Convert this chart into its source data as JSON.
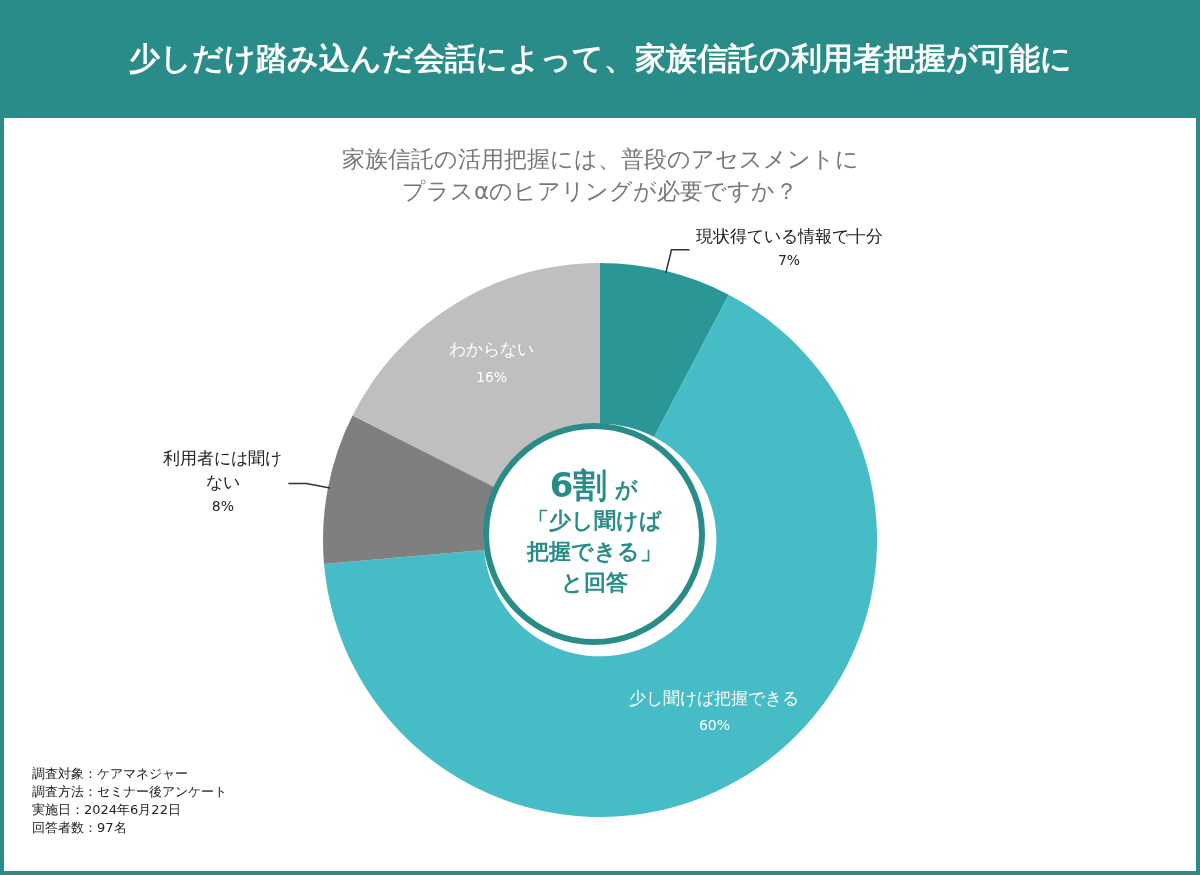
{
  "chart_data": {
    "type": "donut",
    "title": "少しだけ踏み込んだ会話によって、家族信託の利用者把握が可能に",
    "subtitle": "家族信託の活用把握には、普段のアセスメントにプラスαのヒアリングが必要ですか？",
    "categories": [
      "現状得ている情報で十分",
      "少し聞けば把握できる",
      "利用者には聞けない",
      "わからない"
    ],
    "values": [
      7,
      60,
      8,
      16
    ],
    "value_labels": [
      "7%",
      "60%",
      "8%",
      "16%"
    ],
    "colors": [
      "#2a9695",
      "#46bcc6",
      "#7f7f7f",
      "#bfbfbf"
    ],
    "legend": false,
    "annotations": [
      "6割 が「少し聞けば把握できる」と回答",
      "調査対象：ケアマネジャー",
      "調査方法：セミナー後アンケート",
      "実施日：2024年6月22日",
      "回答者数：97名"
    ]
  }
}
